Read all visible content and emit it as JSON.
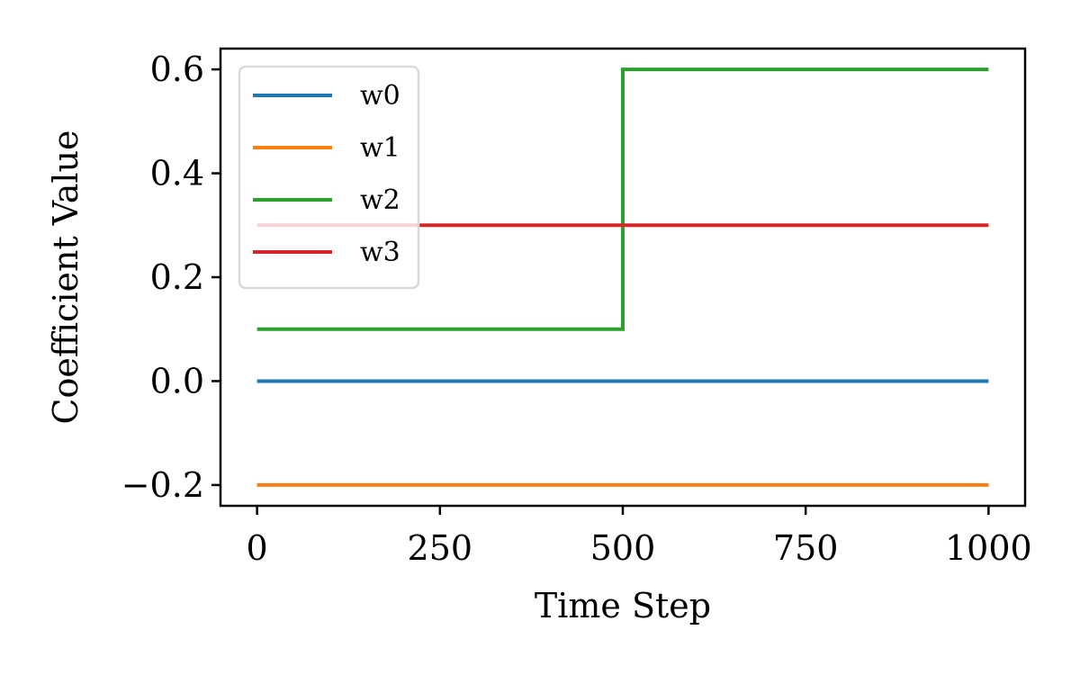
{
  "chart_data": {
    "type": "line",
    "xlabel": "Time Step",
    "ylabel": "Coefficient Value",
    "xlim": [
      -50,
      1050
    ],
    "ylim": [
      -0.24,
      0.64
    ],
    "x_ticks": [
      0,
      250,
      500,
      750,
      1000
    ],
    "x_tick_labels": [
      "0",
      "250",
      "500",
      "750",
      "1000"
    ],
    "y_ticks": [
      -0.2,
      0.0,
      0.2,
      0.4,
      0.6
    ],
    "y_tick_labels": [
      "−0.2",
      "0.0",
      "0.2",
      "0.4",
      "0.6"
    ],
    "grid": false,
    "legend_position": "top-left",
    "series": [
      {
        "name": "w0",
        "color": "#1f77b4",
        "x": [
          0,
          1000
        ],
        "y": [
          0.0,
          0.0
        ]
      },
      {
        "name": "w1",
        "color": "#ff7f0e",
        "x": [
          0,
          1000
        ],
        "y": [
          -0.2,
          -0.2
        ]
      },
      {
        "name": "w2",
        "color": "#2ca02c",
        "x": [
          0,
          500,
          500,
          1000
        ],
        "y": [
          0.1,
          0.1,
          0.6,
          0.6
        ]
      },
      {
        "name": "w3",
        "color": "#d62728",
        "x": [
          0,
          1000
        ],
        "y": [
          0.3,
          0.3
        ]
      }
    ]
  }
}
